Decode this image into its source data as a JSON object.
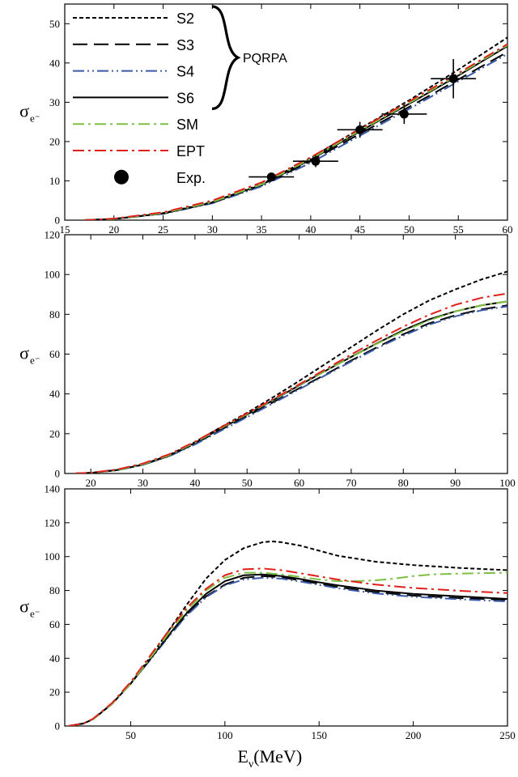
{
  "chart_data": [
    {
      "type": "line",
      "ylabel": "σ",
      "ylabel_sub": "e⁻",
      "xlim": [
        15,
        60
      ],
      "ylim": [
        0,
        55
      ],
      "xticks": [
        15,
        20,
        25,
        30,
        35,
        40,
        45,
        50,
        55,
        60
      ],
      "yticks": [
        0,
        10,
        20,
        30,
        40,
        50
      ],
      "legend": {
        "placement": "top-left",
        "group_label": "PQRPA",
        "entries": [
          {
            "label": "S2",
            "series": "S2"
          },
          {
            "label": "S3",
            "series": "S3"
          },
          {
            "label": "S4",
            "series": "S4"
          },
          {
            "label": "S6",
            "series": "S6"
          },
          {
            "label": "SM",
            "series": "SM"
          },
          {
            "label": "EPT",
            "series": "EPT"
          },
          {
            "label": "Exp.",
            "series": "Exp."
          }
        ]
      },
      "series": [
        {
          "name": "S2",
          "color": "#000000",
          "dash": "short-dash",
          "x": [
            17,
            20,
            25,
            30,
            35,
            40,
            45,
            50,
            55,
            60
          ],
          "y": [
            0,
            0.3,
            1.8,
            4.6,
            9.2,
            15.8,
            23.3,
            30.5,
            38.3,
            46.5
          ]
        },
        {
          "name": "S3",
          "color": "#000000",
          "dash": "long-dash",
          "x": [
            17,
            20,
            25,
            30,
            35,
            40,
            45,
            50,
            55,
            60
          ],
          "y": [
            0,
            0.3,
            1.7,
            4.4,
            8.8,
            15.0,
            22.0,
            28.8,
            35.8,
            42.8
          ]
        },
        {
          "name": "S4",
          "color": "#3a5aa8",
          "dash": "dash-dot-dot",
          "x": [
            17,
            20,
            25,
            30,
            35,
            40,
            45,
            50,
            55,
            60
          ],
          "y": [
            0,
            0.3,
            1.6,
            4.3,
            8.6,
            14.6,
            21.5,
            28.3,
            35.3,
            42.3
          ]
        },
        {
          "name": "S6",
          "color": "#000000",
          "dash": "solid",
          "x": [
            17,
            20,
            25,
            30,
            35,
            40,
            45,
            50,
            55,
            60
          ],
          "y": [
            0,
            0.3,
            1.7,
            4.5,
            9.0,
            15.4,
            22.6,
            29.6,
            36.8,
            44.3
          ]
        },
        {
          "name": "SM",
          "color": "#7cc043",
          "dash": "dash-dot",
          "x": [
            17,
            20,
            25,
            30,
            35,
            40,
            45,
            50,
            55,
            60
          ],
          "y": [
            0,
            0.3,
            1.8,
            4.6,
            9.1,
            15.6,
            22.8,
            29.8,
            37.0,
            44.5
          ]
        },
        {
          "name": "EPT",
          "color": "#e0201b",
          "dash": "dash-dot",
          "x": [
            17,
            20,
            25,
            30,
            35,
            40,
            45,
            50,
            55,
            60
          ],
          "y": [
            0,
            0.4,
            2.0,
            5.0,
            9.6,
            16.0,
            23.2,
            30.2,
            37.4,
            44.8
          ]
        }
      ],
      "points": {
        "name": "Exp.",
        "x": [
          36,
          40.5,
          45,
          49.5,
          54.5
        ],
        "y": [
          11,
          15,
          23,
          27,
          36
        ],
        "xerr": [
          2.3,
          2.3,
          2.3,
          2.3,
          2.3
        ],
        "yerr": [
          1.0,
          1.5,
          2.0,
          2.5,
          5.0
        ]
      }
    },
    {
      "type": "line",
      "ylabel": "σ",
      "ylabel_sub": "e⁻",
      "xlim": [
        15,
        100
      ],
      "ylim": [
        0,
        120
      ],
      "xticks": [
        20,
        30,
        40,
        50,
        60,
        70,
        80,
        90,
        100
      ],
      "yticks": [
        0,
        20,
        40,
        60,
        80,
        100,
        120
      ],
      "series": [
        {
          "name": "S2",
          "color": "#000000",
          "dash": "short-dash",
          "x": [
            17,
            20,
            25,
            30,
            35,
            40,
            45,
            50,
            55,
            60,
            65,
            70,
            75,
            80,
            85,
            90,
            95,
            100
          ],
          "y": [
            0,
            0.3,
            1.8,
            4.6,
            9.2,
            15.8,
            23.3,
            30.5,
            38.3,
            46.5,
            55,
            63.5,
            72,
            80,
            87,
            92.5,
            97.5,
            101.5
          ]
        },
        {
          "name": "S3",
          "color": "#000000",
          "dash": "long-dash",
          "x": [
            17,
            20,
            25,
            30,
            35,
            40,
            45,
            50,
            55,
            60,
            65,
            70,
            75,
            80,
            85,
            90,
            95,
            100
          ],
          "y": [
            0,
            0.3,
            1.7,
            4.4,
            8.8,
            15.0,
            22.0,
            28.8,
            35.8,
            42.8,
            49.7,
            56.8,
            63.5,
            70,
            75.5,
            79.5,
            82.5,
            84.5
          ]
        },
        {
          "name": "S4",
          "color": "#3a5aa8",
          "dash": "dash-dot-dot",
          "x": [
            17,
            20,
            25,
            30,
            35,
            40,
            45,
            50,
            55,
            60,
            65,
            70,
            75,
            80,
            85,
            90,
            95,
            100
          ],
          "y": [
            0,
            0.3,
            1.6,
            4.3,
            8.6,
            14.6,
            21.5,
            28.3,
            35.3,
            42.3,
            49.3,
            56.3,
            63.0,
            69.3,
            74.8,
            79.0,
            82.0,
            84.0
          ]
        },
        {
          "name": "S6",
          "color": "#000000",
          "dash": "solid",
          "x": [
            17,
            20,
            25,
            30,
            35,
            40,
            45,
            50,
            55,
            60,
            65,
            70,
            75,
            80,
            85,
            90,
            95,
            100
          ],
          "y": [
            0,
            0.3,
            1.7,
            4.5,
            9.0,
            15.4,
            22.6,
            29.6,
            36.8,
            44.3,
            51.5,
            58.6,
            65.5,
            72,
            77.5,
            81.5,
            84.5,
            86.5
          ]
        },
        {
          "name": "SM",
          "color": "#7cc043",
          "dash": "dash-dot",
          "x": [
            17,
            20,
            25,
            30,
            35,
            40,
            45,
            50,
            55,
            60,
            65,
            70,
            75,
            80,
            85,
            90,
            95,
            100
          ],
          "y": [
            0,
            0.3,
            1.8,
            4.6,
            9.1,
            15.6,
            22.8,
            29.8,
            37.0,
            44.5,
            51.5,
            58.5,
            65.3,
            71.5,
            77,
            81.5,
            84.5,
            86.5
          ]
        },
        {
          "name": "EPT",
          "color": "#e0201b",
          "dash": "dash-dot",
          "x": [
            17,
            20,
            25,
            30,
            35,
            40,
            45,
            50,
            55,
            60,
            65,
            70,
            75,
            80,
            85,
            90,
            95,
            100
          ],
          "y": [
            0,
            0.4,
            2.0,
            5.0,
            9.6,
            16.0,
            23.2,
            30.2,
            37.4,
            44.8,
            52.3,
            59.8,
            67.0,
            73.8,
            79.8,
            84.8,
            88.3,
            90.5
          ]
        }
      ]
    },
    {
      "type": "line",
      "ylabel": "σ",
      "ylabel_sub": "e⁻",
      "xlabel": "E",
      "xlabel_sub": "ν",
      "xlabel_unit": "(MeV)",
      "xlim": [
        15,
        250
      ],
      "ylim": [
        0,
        140
      ],
      "xticks": [
        50,
        100,
        150,
        200,
        250
      ],
      "yticks": [
        0,
        20,
        40,
        60,
        80,
        100,
        120,
        140
      ],
      "series": [
        {
          "name": "S2",
          "color": "#000000",
          "dash": "short-dash",
          "x": [
            17,
            25,
            30,
            40,
            50,
            60,
            70,
            80,
            90,
            100,
            110,
            120,
            125,
            130,
            140,
            150,
            160,
            180,
            200,
            225,
            250
          ],
          "y": [
            0,
            1.5,
            4,
            13,
            25,
            40,
            56,
            72,
            87,
            98,
            105,
            108.5,
            109,
            108.5,
            106.5,
            103.5,
            100.5,
            97,
            95,
            93.3,
            92
          ]
        },
        {
          "name": "S3",
          "color": "#000000",
          "dash": "long-dash",
          "x": [
            17,
            25,
            30,
            40,
            50,
            60,
            70,
            80,
            90,
            100,
            110,
            120,
            130,
            140,
            150,
            160,
            180,
            200,
            225,
            250
          ],
          "y": [
            0,
            1.5,
            4,
            13,
            25,
            39,
            53,
            66,
            76.5,
            83.5,
            87.5,
            88.5,
            87.8,
            86,
            84,
            82,
            79,
            77,
            75.5,
            74.5
          ]
        },
        {
          "name": "S4",
          "color": "#3a5aa8",
          "dash": "dash-dot-dot",
          "x": [
            17,
            25,
            30,
            40,
            50,
            60,
            70,
            80,
            90,
            100,
            110,
            120,
            130,
            140,
            150,
            160,
            180,
            200,
            225,
            250
          ],
          "y": [
            0,
            1.5,
            4,
            13,
            25,
            38.5,
            52.5,
            65.5,
            76,
            83,
            86.5,
            87.5,
            87,
            85.3,
            83.3,
            81.3,
            78.3,
            76.3,
            74.8,
            73.5
          ]
        },
        {
          "name": "S6",
          "color": "#000000",
          "dash": "solid",
          "x": [
            17,
            25,
            30,
            40,
            50,
            60,
            70,
            80,
            90,
            100,
            110,
            120,
            130,
            140,
            150,
            160,
            180,
            200,
            225,
            250
          ],
          "y": [
            0,
            1.5,
            4,
            13,
            25,
            39,
            53.5,
            67,
            78,
            85.5,
            89,
            89.5,
            88.5,
            86.8,
            84.8,
            83,
            80,
            78,
            76.5,
            75
          ]
        },
        {
          "name": "SM",
          "color": "#7cc043",
          "dash": "dash-dot",
          "x": [
            17,
            25,
            30,
            40,
            50,
            60,
            70,
            80,
            90,
            100,
            110,
            120,
            130,
            140,
            150,
            160,
            170,
            180,
            190,
            200,
            210,
            225,
            250
          ],
          "y": [
            0,
            1.5,
            4,
            13,
            25,
            39.5,
            54.5,
            68.5,
            80,
            87.5,
            90.5,
            90.5,
            89.5,
            88,
            86.5,
            85.5,
            85.5,
            86,
            87,
            88.5,
            89.5,
            90,
            90.5
          ]
        },
        {
          "name": "EPT",
          "color": "#e0201b",
          "dash": "dash-dot",
          "x": [
            17,
            25,
            30,
            40,
            50,
            60,
            70,
            80,
            90,
            100,
            110,
            120,
            130,
            140,
            150,
            160,
            180,
            200,
            225,
            250
          ],
          "y": [
            0,
            1.6,
            4.3,
            13.5,
            26,
            41,
            56,
            70,
            81,
            89,
            92.5,
            93,
            92,
            90.2,
            88.3,
            86.5,
            83.5,
            81.5,
            79.8,
            78.5
          ]
        }
      ]
    }
  ]
}
